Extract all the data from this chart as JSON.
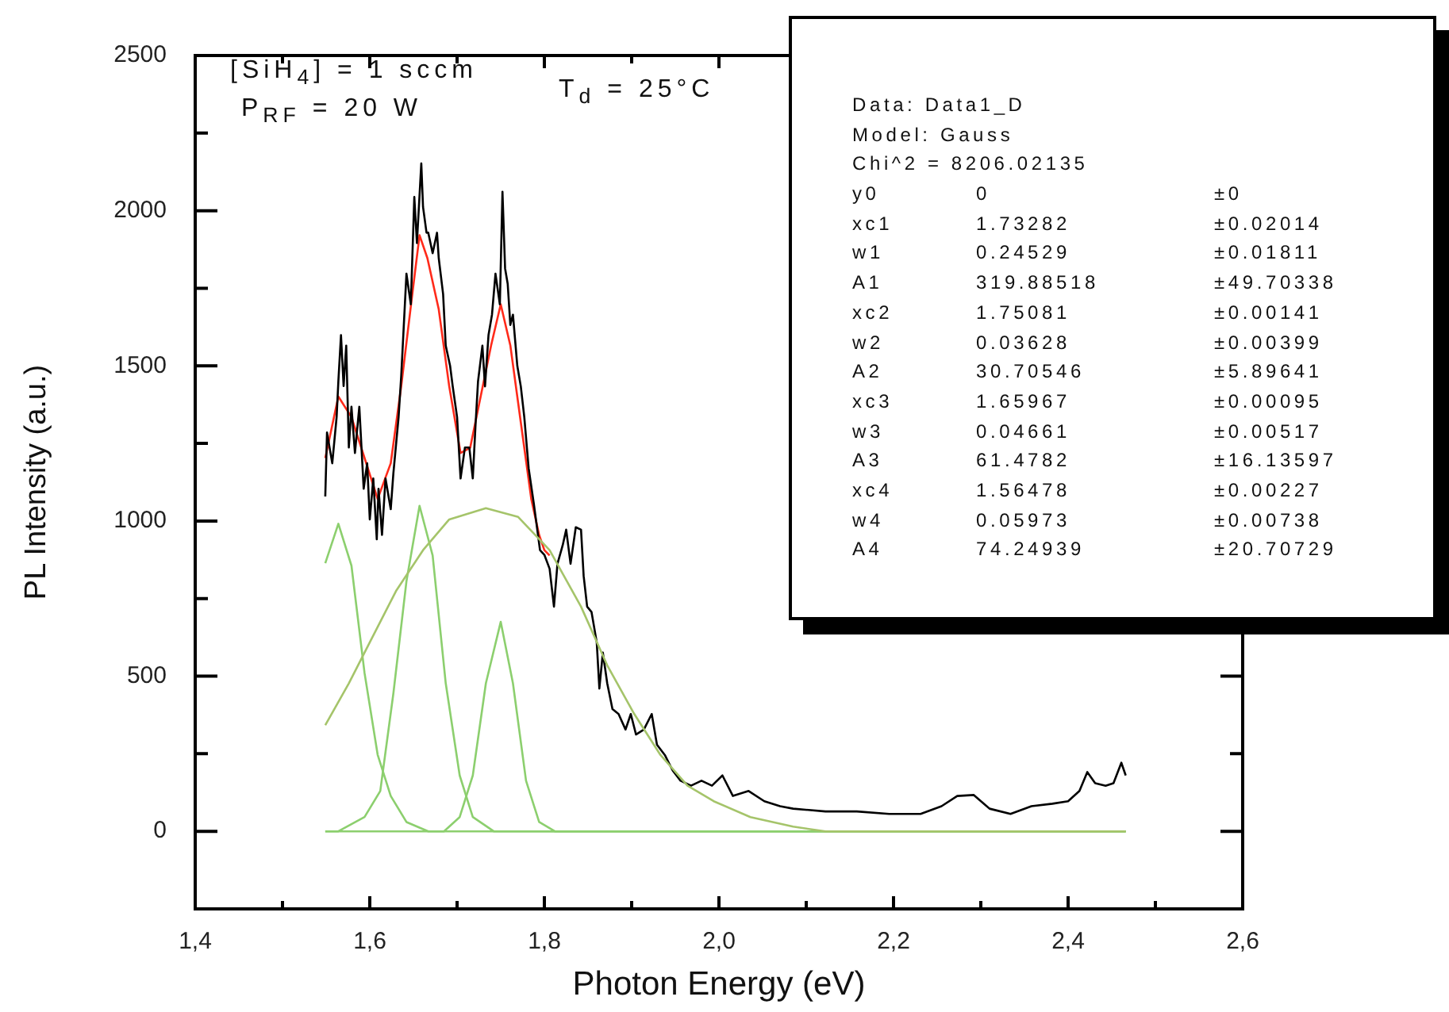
{
  "chart_data": {
    "type": "line",
    "xlabel": "Photon Energy (eV)",
    "ylabel": "PL Intensity (a.u.)",
    "xlim": [
      1.4,
      2.6
    ],
    "ylim": [
      -250,
      2500
    ],
    "xticks": [
      {
        "value": 1.4,
        "label": "1,4"
      },
      {
        "value": 1.5,
        "label": null
      },
      {
        "value": 1.6,
        "label": "1,6"
      },
      {
        "value": 1.7,
        "label": null
      },
      {
        "value": 1.8,
        "label": "1,8"
      },
      {
        "value": 1.9,
        "label": null
      },
      {
        "value": 2.0,
        "label": "2,0"
      },
      {
        "value": 2.1,
        "label": null
      },
      {
        "value": 2.2,
        "label": "2,2"
      },
      {
        "value": 2.3,
        "label": null
      },
      {
        "value": 2.4,
        "label": "2,4"
      },
      {
        "value": 2.5,
        "label": null
      },
      {
        "value": 2.6,
        "label": "2,6"
      }
    ],
    "yticks": [
      0,
      {
        "value": 250,
        "label": null
      },
      500,
      {
        "value": 750,
        "label": null
      },
      1000,
      {
        "value": 1250,
        "label": null
      },
      1500,
      {
        "value": 1750,
        "label": null
      },
      2000,
      {
        "value": 2250,
        "label": null
      },
      2500
    ],
    "grid": false,
    "legend": false,
    "marker": "none",
    "annotations": [
      "[SiH$_{4}$] = 1 sccm",
      "P$_{RF}$ = 20 W",
      "T$_{d}$ = 25°C",
      "Data: Data1_D",
      "Model: Gauss",
      "Chi^2 = 8206.02135",
      "y0\t0\t±0",
      "xc1\t1.73282\t±0.02014",
      "w1\t0.24529\t±0.01811",
      "A1\t319.88518\t±49.70338",
      "xc2\t1.75081\t±0.00141",
      "w2\t0.03628\t±0.00399",
      "A2\t30.70546\t±5.89641",
      "xc3\t1.65967\t±0.00095",
      "w3\t0.04661\t±0.00517",
      "A3\t61.4782\t±16.13597",
      "xc4\t1.56478\t±0.00227",
      "w4\t0.05973\t±0.00738",
      "A4\t74.24939\t±20.70729"
    ],
    "series": [
      {
        "color": "#a5c46a",
        "x": [
          1.549,
          1.576,
          1.6,
          1.63,
          1.661,
          1.691,
          1.733,
          1.77,
          1.806,
          1.842,
          1.872,
          1.903,
          1.933,
          1.964,
          1.994,
          2.036,
          2.085,
          2.122,
          2.466
        ],
        "values": [
          342,
          477,
          609,
          774,
          906,
          1005,
          1041,
          1013,
          906,
          724,
          535,
          378,
          246,
          147,
          97,
          46,
          15,
          0,
          0
        ]
      },
      {
        "color": "#8ccf6e",
        "x": [
          1.549,
          1.564,
          1.579,
          1.594,
          1.609,
          1.624,
          1.642,
          1.667,
          2.466
        ],
        "values": [
          864,
          991,
          856,
          510,
          247,
          114,
          30,
          0,
          0
        ]
      },
      {
        "color": "#8ccf6e",
        "x": [
          1.549,
          1.564,
          1.594,
          1.612,
          1.627,
          1.642,
          1.657,
          1.672,
          1.687,
          1.703,
          1.718,
          1.742,
          2.466
        ],
        "values": [
          0,
          0,
          46,
          130,
          444,
          806,
          1049,
          889,
          477,
          180,
          46,
          0,
          0
        ]
      },
      {
        "color": "#8ccf6e",
        "x": [
          1.549,
          1.685,
          1.703,
          1.718,
          1.733,
          1.75,
          1.764,
          1.779,
          1.794,
          1.812,
          2.466
        ],
        "values": [
          0,
          0,
          46,
          180,
          477,
          675,
          477,
          163,
          30,
          0,
          0
        ]
      },
      {
        "color": "#000000",
        "x": [
          1.549,
          1.551,
          1.557,
          1.562,
          1.564,
          1.567,
          1.57,
          1.573,
          1.576,
          1.579,
          1.583,
          1.588,
          1.593,
          1.597,
          1.6,
          1.604,
          1.608,
          1.61,
          1.614,
          1.618,
          1.624,
          1.627,
          1.633,
          1.636,
          1.642,
          1.647,
          1.651,
          1.654,
          1.659,
          1.661,
          1.665,
          1.667,
          1.672,
          1.677,
          1.679,
          1.684,
          1.687,
          1.692,
          1.695,
          1.7,
          1.704,
          1.709,
          1.714,
          1.718,
          1.721,
          1.724,
          1.729,
          1.732,
          1.736,
          1.74,
          1.744,
          1.749,
          1.752,
          1.755,
          1.758,
          1.761,
          1.764,
          1.769,
          1.773,
          1.777,
          1.782,
          1.788,
          1.795,
          1.8,
          1.806,
          1.811,
          1.815,
          1.821,
          1.825,
          1.83,
          1.836,
          1.842,
          1.845,
          1.849,
          1.854,
          1.86,
          1.863,
          1.867,
          1.872,
          1.878,
          1.885,
          1.893,
          1.899,
          1.905,
          1.914,
          1.923,
          1.929,
          1.938,
          1.947,
          1.956,
          1.968,
          1.98,
          1.992,
          2.004,
          2.016,
          2.034,
          2.052,
          2.07,
          2.085,
          2.122,
          2.158,
          2.195,
          2.231,
          2.255,
          2.273,
          2.292,
          2.31,
          2.334,
          2.358,
          2.382,
          2.4,
          2.413,
          2.422,
          2.431,
          2.443,
          2.452,
          2.461,
          2.466
        ],
        "values": [
          1079,
          1285,
          1186,
          1335,
          1450,
          1599,
          1435,
          1565,
          1237,
          1368,
          1219,
          1368,
          1104,
          1186,
          1005,
          1137,
          941,
          1104,
          955,
          1137,
          1038,
          1153,
          1335,
          1467,
          1797,
          1698,
          2044,
          1896,
          2152,
          2012,
          1929,
          1929,
          1863,
          1929,
          1847,
          1731,
          1565,
          1500,
          1434,
          1335,
          1137,
          1237,
          1237,
          1137,
          1302,
          1450,
          1565,
          1434,
          1599,
          1665,
          1797,
          1698,
          2061,
          1814,
          1764,
          1632,
          1665,
          1500,
          1434,
          1335,
          1170,
          1054,
          906,
          891,
          846,
          724,
          862,
          922,
          972,
          862,
          980,
          972,
          823,
          724,
          707,
          609,
          460,
          576,
          477,
          394,
          378,
          328,
          378,
          312,
          328,
          378,
          279,
          246,
          196,
          163,
          147,
          163,
          147,
          180,
          114,
          130,
          97,
          81,
          73,
          64,
          64,
          56,
          56,
          81,
          114,
          117,
          73,
          56,
          81,
          89,
          97,
          130,
          191,
          155,
          147,
          155,
          221,
          180
        ]
      },
      {
        "color": "#ff2a1a",
        "x": [
          1.549,
          1.564,
          1.579,
          1.594,
          1.609,
          1.624,
          1.636,
          1.648,
          1.657,
          1.666,
          1.679,
          1.691,
          1.704,
          1.715,
          1.727,
          1.739,
          1.75,
          1.761,
          1.773,
          1.785,
          1.794,
          1.8,
          1.806
        ],
        "values": [
          1203,
          1401,
          1335,
          1203,
          1071,
          1186,
          1434,
          1715,
          1921,
          1847,
          1682,
          1434,
          1219,
          1236,
          1401,
          1566,
          1698,
          1566,
          1318,
          1071,
          955,
          906,
          889
        ]
      }
    ]
  }
}
